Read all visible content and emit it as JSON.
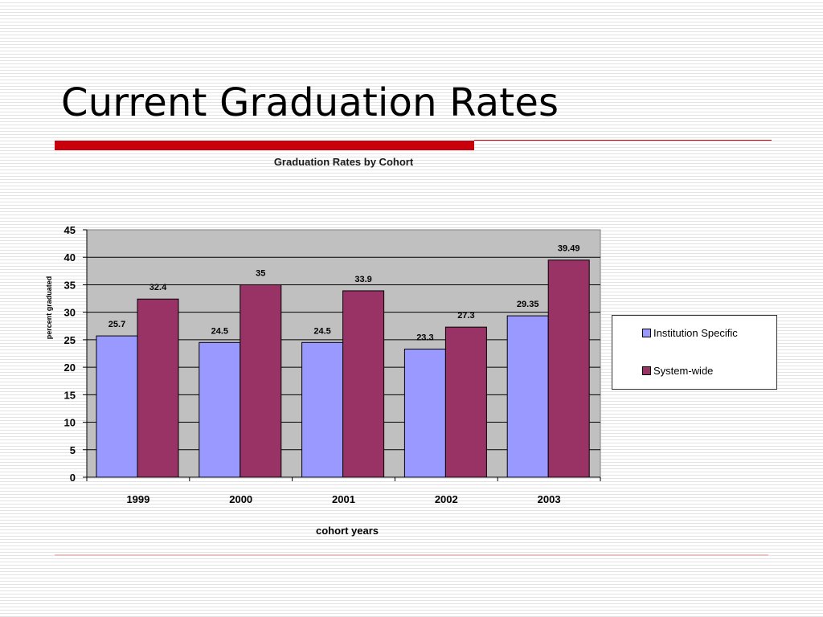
{
  "slide": {
    "title": "Current Graduation Rates"
  },
  "chart_data": {
    "type": "bar",
    "title": "Graduation Rates by Cohort",
    "xlabel": "cohort years",
    "ylabel": "percent graduated",
    "categories": [
      "1999",
      "2000",
      "2001",
      "2002",
      "2003"
    ],
    "series": [
      {
        "name": "Institution Specific",
        "color": "#9999ff",
        "values": [
          25.7,
          24.5,
          24.5,
          23.3,
          29.35
        ],
        "labels": [
          "25.7",
          "24.5",
          "24.5",
          "23.3",
          "29.35"
        ]
      },
      {
        "name": "System-wide",
        "color": "#993366",
        "values": [
          32.4,
          35,
          33.9,
          27.3,
          39.49
        ],
        "labels": [
          "32.4",
          "35",
          "33.9",
          "27.3",
          "39.49"
        ]
      }
    ],
    "ylim": [
      0,
      45
    ],
    "yticks": [
      0,
      5,
      10,
      15,
      20,
      25,
      30,
      35,
      40,
      45
    ],
    "plot_background": "#c0c0c0",
    "grid": true,
    "legend_position": "right"
  }
}
